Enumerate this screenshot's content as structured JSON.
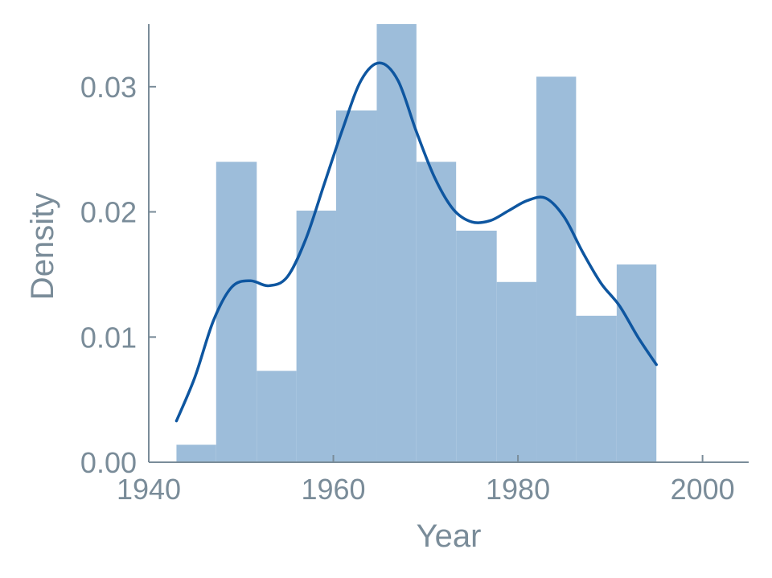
{
  "chart_data": {
    "type": "bar",
    "subtype": "histogram-with-density-curve",
    "xlabel": "Year",
    "ylabel": "Density",
    "xlim": [
      1940,
      2005
    ],
    "ylim": [
      0,
      0.035
    ],
    "x_ticks": [
      1940,
      1960,
      1980,
      2000
    ],
    "x_tick_labels": [
      "1940",
      "1960",
      "1980",
      "2000"
    ],
    "y_ticks": [
      0,
      0.01,
      0.02,
      0.03
    ],
    "y_tick_labels": [
      "0.00",
      "0.01",
      "0.02",
      "0.03"
    ],
    "grid": false,
    "bins": [
      {
        "start": 1943.0,
        "end": 1947.3,
        "density": 0.0014
      },
      {
        "start": 1947.3,
        "end": 1951.7,
        "density": 0.024
      },
      {
        "start": 1951.7,
        "end": 1956.0,
        "density": 0.0073
      },
      {
        "start": 1956.0,
        "end": 1960.3,
        "density": 0.0201
      },
      {
        "start": 1960.3,
        "end": 1964.7,
        "density": 0.0281
      },
      {
        "start": 1964.7,
        "end": 1969.0,
        "density": 0.035
      },
      {
        "start": 1969.0,
        "end": 1973.3,
        "density": 0.024
      },
      {
        "start": 1973.3,
        "end": 1977.7,
        "density": 0.0185
      },
      {
        "start": 1977.7,
        "end": 1982.0,
        "density": 0.0144
      },
      {
        "start": 1982.0,
        "end": 1986.3,
        "density": 0.0308
      },
      {
        "start": 1986.3,
        "end": 1990.7,
        "density": 0.0117
      },
      {
        "start": 1990.7,
        "end": 1995.0,
        "density": 0.0158
      }
    ],
    "density_curve": {
      "x": [
        1943,
        1945,
        1947,
        1949,
        1951,
        1953,
        1955,
        1957,
        1959,
        1961,
        1963,
        1965,
        1967,
        1969,
        1971,
        1973,
        1975,
        1977,
        1979,
        1981,
        1983,
        1985,
        1987,
        1989,
        1991,
        1993,
        1995
      ],
      "y": [
        0.0033,
        0.0068,
        0.0113,
        0.014,
        0.0145,
        0.0141,
        0.0148,
        0.0178,
        0.0222,
        0.0266,
        0.0305,
        0.0319,
        0.0305,
        0.0264,
        0.0227,
        0.0202,
        0.0192,
        0.0193,
        0.0201,
        0.0209,
        0.0211,
        0.0196,
        0.0168,
        0.0143,
        0.0125,
        0.01,
        0.0078
      ]
    },
    "colors": {
      "bars": "#9dbdda",
      "curve": "#0e56a0",
      "axis": "#7a8c99",
      "text": "#7a8c99"
    }
  }
}
